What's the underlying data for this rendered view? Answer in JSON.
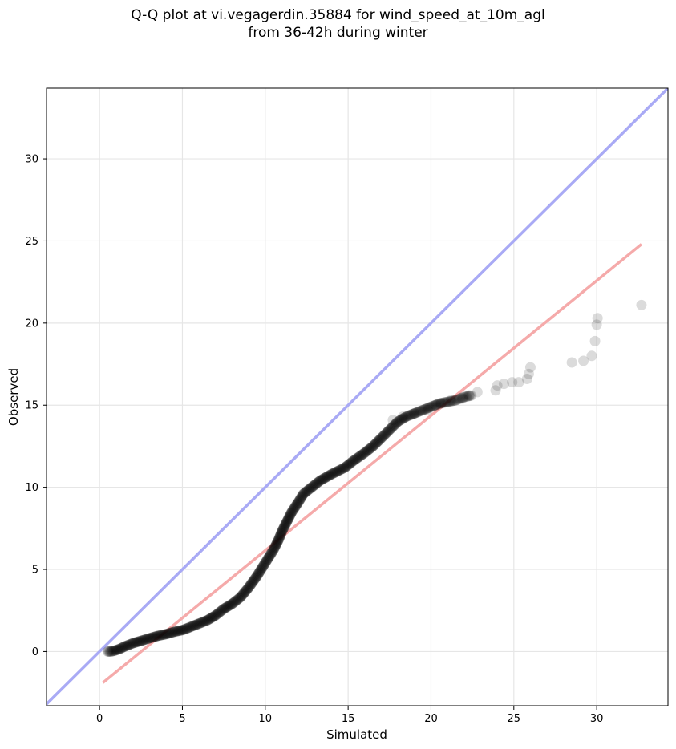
{
  "chart_data": {
    "type": "scatter",
    "title_line1": "Q-Q plot at vi.vegagerdin.35884 for wind_speed_at_10m_agl",
    "title_line2": "from 36-42h during winter",
    "xlabel": "Simulated",
    "ylabel": "Observed",
    "xlim": [
      -3.2,
      34.3
    ],
    "ylim": [
      -3.3,
      34.3
    ],
    "xticks": [
      0,
      5,
      10,
      15,
      20,
      25,
      30
    ],
    "yticks": [
      0,
      5,
      10,
      15,
      20,
      25,
      30
    ],
    "grid": true,
    "colors": {
      "points": "#000000",
      "identity_line": "#a9aaf5",
      "fit_line": "#f5aaaa"
    },
    "identity_line": {
      "x": [
        -3.2,
        34.3
      ],
      "y": [
        -3.2,
        34.3
      ]
    },
    "fit_line": {
      "x": [
        0.2,
        32.7
      ],
      "y": [
        -1.9,
        24.8
      ]
    },
    "curve_points": [
      [
        0.5,
        0.0
      ],
      [
        0.7,
        0.0
      ],
      [
        0.9,
        0.05
      ],
      [
        1.2,
        0.15
      ],
      [
        1.5,
        0.3
      ],
      [
        2.0,
        0.5
      ],
      [
        2.5,
        0.65
      ],
      [
        3.0,
        0.8
      ],
      [
        3.5,
        0.95
      ],
      [
        4.0,
        1.05
      ],
      [
        4.5,
        1.2
      ],
      [
        5.0,
        1.3
      ],
      [
        5.5,
        1.5
      ],
      [
        6.0,
        1.7
      ],
      [
        6.5,
        1.9
      ],
      [
        7.0,
        2.2
      ],
      [
        7.5,
        2.6
      ],
      [
        8.0,
        2.9
      ],
      [
        8.5,
        3.3
      ],
      [
        9.0,
        3.9
      ],
      [
        9.5,
        4.6
      ],
      [
        10.0,
        5.4
      ],
      [
        10.5,
        6.2
      ],
      [
        10.8,
        6.8
      ],
      [
        11.0,
        7.3
      ],
      [
        11.3,
        7.9
      ],
      [
        11.6,
        8.5
      ],
      [
        12.0,
        9.1
      ],
      [
        12.3,
        9.6
      ],
      [
        12.8,
        10.0
      ],
      [
        13.3,
        10.4
      ],
      [
        14.0,
        10.8
      ],
      [
        14.8,
        11.2
      ],
      [
        15.3,
        11.6
      ],
      [
        16.0,
        12.1
      ],
      [
        16.5,
        12.5
      ],
      [
        17.0,
        13.0
      ],
      [
        17.5,
        13.5
      ],
      [
        18.0,
        14.0
      ],
      [
        18.5,
        14.3
      ],
      [
        19.0,
        14.5
      ],
      [
        19.5,
        14.7
      ],
      [
        20.0,
        14.9
      ],
      [
        20.5,
        15.1
      ],
      [
        21.0,
        15.2
      ],
      [
        21.5,
        15.3
      ],
      [
        22.0,
        15.5
      ],
      [
        22.5,
        15.6
      ]
    ],
    "tail_points": [
      [
        17.7,
        14.1
      ],
      [
        18.3,
        14.3
      ],
      [
        19.0,
        14.5
      ],
      [
        19.8,
        14.7
      ],
      [
        20.3,
        15.0
      ],
      [
        20.6,
        15.1
      ],
      [
        21.2,
        15.3
      ],
      [
        21.9,
        15.4
      ],
      [
        22.3,
        15.6
      ],
      [
        22.8,
        15.8
      ],
      [
        23.9,
        15.9
      ],
      [
        24.0,
        16.2
      ],
      [
        24.4,
        16.3
      ],
      [
        24.9,
        16.4
      ],
      [
        25.3,
        16.4
      ],
      [
        25.8,
        16.6
      ],
      [
        25.9,
        16.9
      ],
      [
        26.0,
        17.3
      ],
      [
        28.5,
        17.6
      ],
      [
        29.2,
        17.7
      ],
      [
        29.7,
        18.0
      ],
      [
        29.9,
        18.9
      ],
      [
        30.0,
        19.9
      ],
      [
        30.05,
        20.3
      ],
      [
        32.7,
        21.1
      ]
    ]
  }
}
